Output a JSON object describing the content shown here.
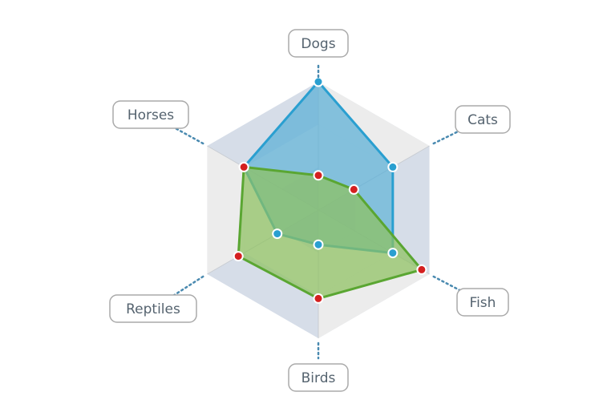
{
  "chart_data": {
    "type": "radar",
    "axes": [
      "Dogs",
      "Cats",
      "Fish",
      "Birds",
      "Reptiles",
      "Horses"
    ],
    "scale": [
      0,
      10
    ],
    "rings": 3,
    "grid": true,
    "legend": "none",
    "series": [
      {
        "values": [
          10,
          6.7,
          6.7,
          2.7,
          3.7,
          6.7
        ],
        "line_color": "#2a9fd0",
        "fill_color": "#5aafd6",
        "marker_color": "#2a9fd0"
      },
      {
        "values": [
          2.7,
          3.2,
          9.3,
          6.9,
          7.2,
          6.7
        ],
        "line_color": "#5aa632",
        "fill_color": "#8dc060",
        "marker_color": "#d42020"
      }
    ]
  },
  "colors": {
    "ring_band_dark": "#d6dde8",
    "ring_band_light": "#ececec",
    "spoke": "#c8ccd2",
    "leader_dots": "#4a8ab0"
  }
}
